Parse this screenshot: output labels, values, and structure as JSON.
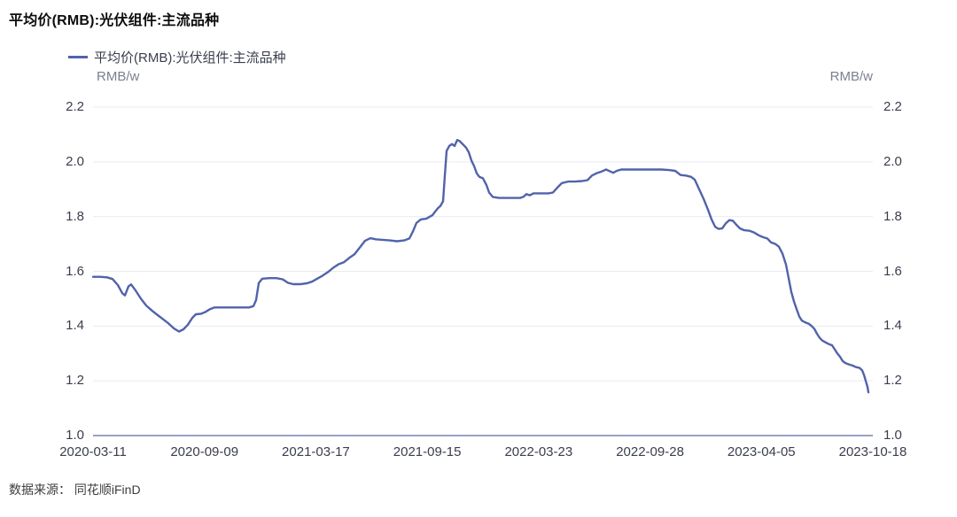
{
  "title": "平均价(RMB):光伏组件:主流品种",
  "legend": {
    "label": "平均价(RMB):光伏组件:主流品种"
  },
  "units": {
    "left": "RMB/w",
    "right": "RMB/w"
  },
  "footer": {
    "text": "数据来源： 同花顺iFinD"
  },
  "colors": {
    "line": "#5163aa",
    "grid": "#eaebf3",
    "axis": "#99a0c6",
    "tick_text": "#3a3e4d",
    "unit_text": "#7b7f90",
    "title_text": "#0d0d0d",
    "footer_text": "#3d3d3d"
  },
  "chart_data": {
    "type": "line",
    "title": "平均价(RMB):光伏组件:主流品种",
    "ylabel_left": "RMB/w",
    "ylabel_right": "RMB/w",
    "ylim": [
      1.0,
      2.2
    ],
    "grid": true,
    "legend_position": "top-left",
    "y_ticks": [
      "2.2",
      "2.0",
      "1.8",
      "1.6",
      "1.4",
      "1.2",
      "1.0"
    ],
    "x_tick_labels": [
      "2020-03-11",
      "2020-09-09",
      "2021-03-17",
      "2021-09-15",
      "2022-03-23",
      "2022-09-28",
      "2023-04-05",
      "2023-10-18"
    ],
    "x_range": [
      "2020-03-11",
      "2023-10-18"
    ],
    "series": [
      {
        "name": "平均价(RMB):光伏组件:主流品种",
        "points": [
          [
            0.0,
            1.58
          ],
          [
            0.0091,
            1.58
          ],
          [
            0.0183,
            1.578
          ],
          [
            0.0251,
            1.572
          ],
          [
            0.032,
            1.55
          ],
          [
            0.0377,
            1.52
          ],
          [
            0.0411,
            1.512
          ],
          [
            0.0457,
            1.545
          ],
          [
            0.0491,
            1.552
          ],
          [
            0.0549,
            1.53
          ],
          [
            0.0617,
            1.5
          ],
          [
            0.0686,
            1.475
          ],
          [
            0.0766,
            1.455
          ],
          [
            0.0834,
            1.44
          ],
          [
            0.0903,
            1.425
          ],
          [
            0.0971,
            1.41
          ],
          [
            0.104,
            1.392
          ],
          [
            0.1109,
            1.38
          ],
          [
            0.1166,
            1.388
          ],
          [
            0.1223,
            1.405
          ],
          [
            0.128,
            1.43
          ],
          [
            0.1326,
            1.443
          ],
          [
            0.1394,
            1.445
          ],
          [
            0.1451,
            1.452
          ],
          [
            0.1509,
            1.462
          ],
          [
            0.1566,
            1.468
          ],
          [
            0.168,
            1.468
          ],
          [
            0.1794,
            1.468
          ],
          [
            0.1909,
            1.468
          ],
          [
            0.2011,
            1.468
          ],
          [
            0.2069,
            1.473
          ],
          [
            0.2103,
            1.495
          ],
          [
            0.2137,
            1.557
          ],
          [
            0.2183,
            1.573
          ],
          [
            0.2274,
            1.575
          ],
          [
            0.2366,
            1.575
          ],
          [
            0.2446,
            1.571
          ],
          [
            0.2514,
            1.558
          ],
          [
            0.2583,
            1.553
          ],
          [
            0.2674,
            1.553
          ],
          [
            0.2754,
            1.556
          ],
          [
            0.2823,
            1.562
          ],
          [
            0.2891,
            1.573
          ],
          [
            0.296,
            1.584
          ],
          [
            0.3029,
            1.597
          ],
          [
            0.3097,
            1.613
          ],
          [
            0.3166,
            1.626
          ],
          [
            0.3234,
            1.633
          ],
          [
            0.3303,
            1.649
          ],
          [
            0.3371,
            1.662
          ],
          [
            0.344,
            1.687
          ],
          [
            0.3509,
            1.712
          ],
          [
            0.3577,
            1.721
          ],
          [
            0.3646,
            1.717
          ],
          [
            0.3737,
            1.715
          ],
          [
            0.3829,
            1.713
          ],
          [
            0.392,
            1.71
          ],
          [
            0.4011,
            1.713
          ],
          [
            0.408,
            1.72
          ],
          [
            0.4126,
            1.746
          ],
          [
            0.4171,
            1.777
          ],
          [
            0.4229,
            1.79
          ],
          [
            0.4297,
            1.792
          ],
          [
            0.4377,
            1.805
          ],
          [
            0.4411,
            1.818
          ],
          [
            0.4446,
            1.83
          ],
          [
            0.448,
            1.839
          ],
          [
            0.4514,
            1.856
          ],
          [
            0.4537,
            1.95
          ],
          [
            0.456,
            2.04
          ],
          [
            0.4594,
            2.058
          ],
          [
            0.4629,
            2.065
          ],
          [
            0.4663,
            2.058
          ],
          [
            0.4697,
            2.08
          ],
          [
            0.4731,
            2.075
          ],
          [
            0.4777,
            2.062
          ],
          [
            0.4811,
            2.052
          ],
          [
            0.4846,
            2.035
          ],
          [
            0.488,
            2.005
          ],
          [
            0.4914,
            1.985
          ],
          [
            0.4949,
            1.958
          ],
          [
            0.4983,
            1.945
          ],
          [
            0.5029,
            1.94
          ],
          [
            0.5074,
            1.915
          ],
          [
            0.5109,
            1.888
          ],
          [
            0.5154,
            1.872
          ],
          [
            0.5234,
            1.868
          ],
          [
            0.5326,
            1.868
          ],
          [
            0.5417,
            1.868
          ],
          [
            0.5509,
            1.868
          ],
          [
            0.5554,
            1.873
          ],
          [
            0.5589,
            1.882
          ],
          [
            0.5634,
            1.878
          ],
          [
            0.568,
            1.885
          ],
          [
            0.5783,
            1.885
          ],
          [
            0.5874,
            1.885
          ],
          [
            0.5931,
            1.888
          ],
          [
            0.5989,
            1.906
          ],
          [
            0.6046,
            1.922
          ],
          [
            0.6126,
            1.928
          ],
          [
            0.6217,
            1.928
          ],
          [
            0.6309,
            1.93
          ],
          [
            0.6377,
            1.933
          ],
          [
            0.6434,
            1.95
          ],
          [
            0.6491,
            1.958
          ],
          [
            0.656,
            1.965
          ],
          [
            0.6617,
            1.972
          ],
          [
            0.6663,
            1.966
          ],
          [
            0.6709,
            1.96
          ],
          [
            0.6754,
            1.967
          ],
          [
            0.6811,
            1.972
          ],
          [
            0.6914,
            1.972
          ],
          [
            0.7017,
            1.972
          ],
          [
            0.712,
            1.972
          ],
          [
            0.7223,
            1.972
          ],
          [
            0.7326,
            1.972
          ],
          [
            0.7429,
            1.97
          ],
          [
            0.7509,
            1.967
          ],
          [
            0.7577,
            1.952
          ],
          [
            0.7646,
            1.95
          ],
          [
            0.7714,
            1.945
          ],
          [
            0.776,
            1.935
          ],
          [
            0.7817,
            1.9
          ],
          [
            0.7874,
            1.865
          ],
          [
            0.7931,
            1.825
          ],
          [
            0.7977,
            1.79
          ],
          [
            0.8023,
            1.763
          ],
          [
            0.8069,
            1.755
          ],
          [
            0.8114,
            1.757
          ],
          [
            0.816,
            1.775
          ],
          [
            0.8206,
            1.787
          ],
          [
            0.8251,
            1.785
          ],
          [
            0.8297,
            1.77
          ],
          [
            0.8343,
            1.757
          ],
          [
            0.84,
            1.75
          ],
          [
            0.8469,
            1.748
          ],
          [
            0.8526,
            1.742
          ],
          [
            0.8583,
            1.732
          ],
          [
            0.864,
            1.725
          ],
          [
            0.8697,
            1.72
          ],
          [
            0.8743,
            1.706
          ],
          [
            0.88,
            1.7
          ],
          [
            0.8846,
            1.69
          ],
          [
            0.8891,
            1.665
          ],
          [
            0.8937,
            1.625
          ],
          [
            0.8971,
            1.575
          ],
          [
            0.9006,
            1.525
          ],
          [
            0.904,
            1.49
          ],
          [
            0.9074,
            1.462
          ],
          [
            0.9109,
            1.435
          ],
          [
            0.9143,
            1.42
          ],
          [
            0.9189,
            1.413
          ],
          [
            0.9234,
            1.408
          ],
          [
            0.9269,
            1.4
          ],
          [
            0.9303,
            1.39
          ],
          [
            0.9337,
            1.372
          ],
          [
            0.9371,
            1.357
          ],
          [
            0.9406,
            1.347
          ],
          [
            0.9451,
            1.34
          ],
          [
            0.9497,
            1.333
          ],
          [
            0.9531,
            1.33
          ],
          [
            0.9566,
            1.315
          ],
          [
            0.96,
            1.3
          ],
          [
            0.9634,
            1.288
          ],
          [
            0.9669,
            1.272
          ],
          [
            0.9703,
            1.265
          ],
          [
            0.9749,
            1.26
          ],
          [
            0.9794,
            1.256
          ],
          [
            0.984,
            1.25
          ],
          [
            0.9886,
            1.247
          ],
          [
            0.992,
            1.238
          ],
          [
            0.9943,
            1.222
          ],
          [
            0.9966,
            1.2
          ],
          [
            0.9989,
            1.178
          ],
          [
            1.0,
            1.158
          ]
        ]
      }
    ]
  }
}
